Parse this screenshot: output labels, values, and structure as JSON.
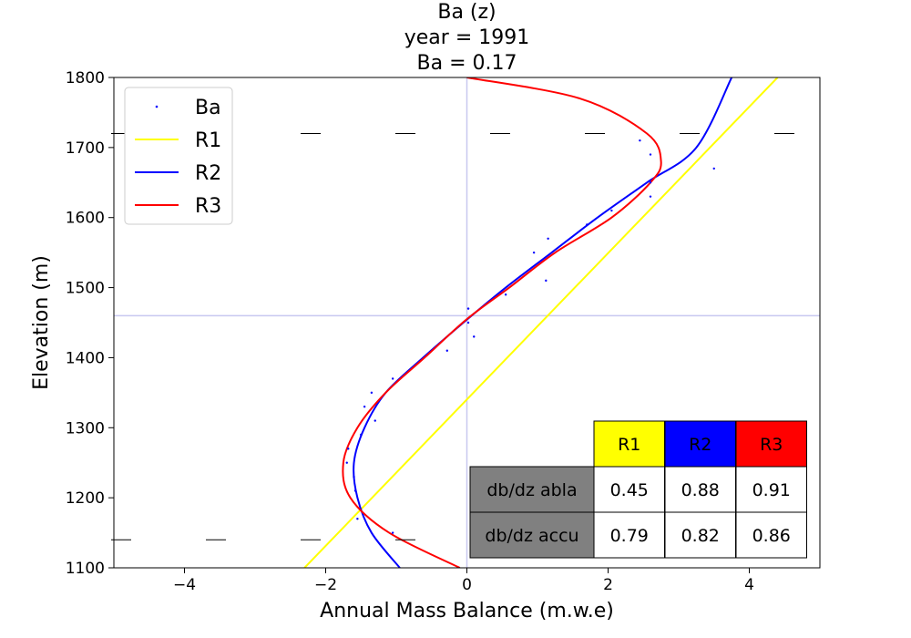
{
  "chart_data": {
    "type": "line",
    "title_lines": [
      "Ba (z)",
      "year = 1991",
      "Ba = 0.17"
    ],
    "xlabel": "Annual Mass Balance (m.w.e)",
    "ylabel": "Elevation (m)",
    "xlim": [
      -5,
      5
    ],
    "ylim": [
      1100,
      1800
    ],
    "xticks": [
      -4,
      -2,
      0,
      2,
      4
    ],
    "xtick_labels": [
      "−4",
      "−2",
      "0",
      "2",
      "4"
    ],
    "yticks": [
      1100,
      1200,
      1300,
      1400,
      1500,
      1600,
      1700,
      1800
    ],
    "ytick_labels": [
      "1100",
      "1200",
      "1300",
      "1400",
      "1500",
      "1600",
      "1700",
      "1800"
    ],
    "reference_lines": {
      "x": 0,
      "y": 1460,
      "color": "#c8c8f0"
    },
    "dashed_levels": [
      1720,
      1140
    ],
    "legend": {
      "placement": "top-left",
      "entries": [
        "Ba",
        "R1",
        "R2",
        "R3"
      ]
    },
    "points_series": {
      "name": "Ba",
      "color": "#0000ff",
      "points": [
        [
          2.45,
          1710
        ],
        [
          2.6,
          1690
        ],
        [
          3.5,
          1670
        ],
        [
          2.6,
          1650
        ],
        [
          2.6,
          1630
        ],
        [
          2.05,
          1610
        ],
        [
          1.7,
          1590
        ],
        [
          1.15,
          1570
        ],
        [
          0.95,
          1550
        ],
        [
          1.12,
          1510
        ],
        [
          0.55,
          1490
        ],
        [
          0.02,
          1470
        ],
        [
          0.02,
          1450
        ],
        [
          0.1,
          1430
        ],
        [
          -0.28,
          1410
        ],
        [
          -1.05,
          1370
        ],
        [
          -1.35,
          1350
        ],
        [
          -1.45,
          1330
        ],
        [
          -1.3,
          1310
        ],
        [
          -1.5,
          1290
        ],
        [
          -1.68,
          1270
        ],
        [
          -1.7,
          1250
        ],
        [
          -1.6,
          1230
        ],
        [
          -1.58,
          1210
        ],
        [
          -1.55,
          1170
        ],
        [
          -1.05,
          1150
        ]
      ]
    },
    "series": [
      {
        "name": "R1",
        "color": "#ffff00",
        "x": [
          -2.3,
          4.4
        ],
        "y": [
          1100,
          1800
        ]
      },
      {
        "name": "R2",
        "color": "#0000ff",
        "x": [
          -0.95,
          -1.35,
          -1.55,
          -1.6,
          -1.45,
          -1.15,
          -0.62,
          -0.05,
          0.55,
          1.2,
          1.85,
          2.55,
          3.25,
          3.75
        ],
        "y": [
          1100,
          1150,
          1200,
          1250,
          1300,
          1350,
          1400,
          1450,
          1500,
          1550,
          1600,
          1650,
          1700,
          1800
        ]
      },
      {
        "name": "R3",
        "color": "#ff0000",
        "x": [
          -0.1,
          -1.1,
          -1.65,
          -1.75,
          -1.55,
          -1.15,
          -0.6,
          0.0,
          0.6,
          1.25,
          2.05,
          2.6,
          2.75,
          2.55,
          1.6,
          0.0
        ],
        "y": [
          1100,
          1150,
          1200,
          1250,
          1300,
          1350,
          1400,
          1455,
          1500,
          1550,
          1600,
          1650,
          1680,
          1720,
          1770,
          1800
        ]
      }
    ],
    "table": {
      "columns": [
        "R1",
        "R2",
        "R3"
      ],
      "column_colors": [
        "#ffff00",
        "#0000ff",
        "#ff0000"
      ],
      "row_header_color": "#808080",
      "rows": [
        {
          "label": "db/dz abla",
          "values": [
            "0.45",
            "0.88",
            "0.91"
          ]
        },
        {
          "label": "db/dz accu",
          "values": [
            "0.79",
            "0.82",
            "0.86"
          ]
        }
      ]
    }
  }
}
